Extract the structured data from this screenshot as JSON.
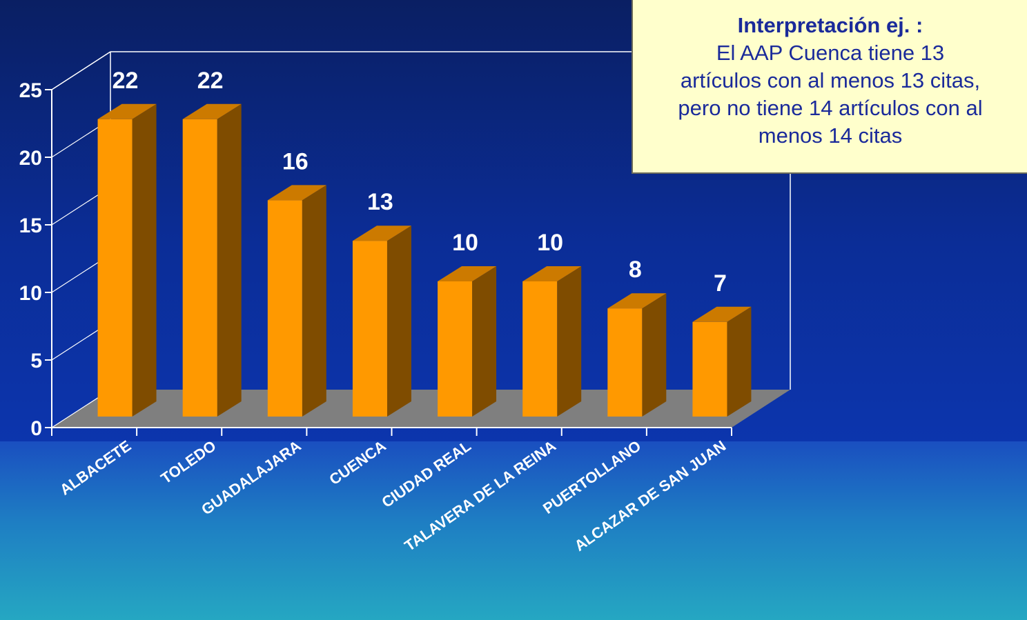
{
  "chart_data": {
    "type": "bar",
    "categories": [
      "ALBACETE",
      "TOLEDO",
      "GUADALAJARA",
      "CUENCA",
      "CIUDAD REAL",
      "TALAVERA DE LA REINA",
      "PUERTOLLANO",
      "ALCAZAR DE SAN JUAN"
    ],
    "values": [
      22,
      22,
      16,
      13,
      10,
      10,
      8,
      7
    ],
    "value_labels": [
      "22",
      "22",
      "16",
      "13",
      "10",
      "10",
      "8",
      "7"
    ],
    "title": "",
    "xlabel": "",
    "ylabel": "",
    "ylim": [
      0,
      25
    ],
    "yticks": [
      "0",
      "5",
      "10",
      "15",
      "20",
      "25"
    ],
    "grid": false,
    "colors": {
      "bar_front": "#ff9900",
      "bar_top": "#cc7a00",
      "bar_side": "#7f4c00",
      "floor": "#7f7f7f",
      "axis": "#ffffff"
    }
  },
  "note": {
    "title": "Interpretación ej. :",
    "lines": [
      "El AAP Cuenca tiene 13",
      "artículos con al menos 13 citas,",
      "pero no tiene 14 artículos con al",
      "menos 14 citas"
    ]
  }
}
